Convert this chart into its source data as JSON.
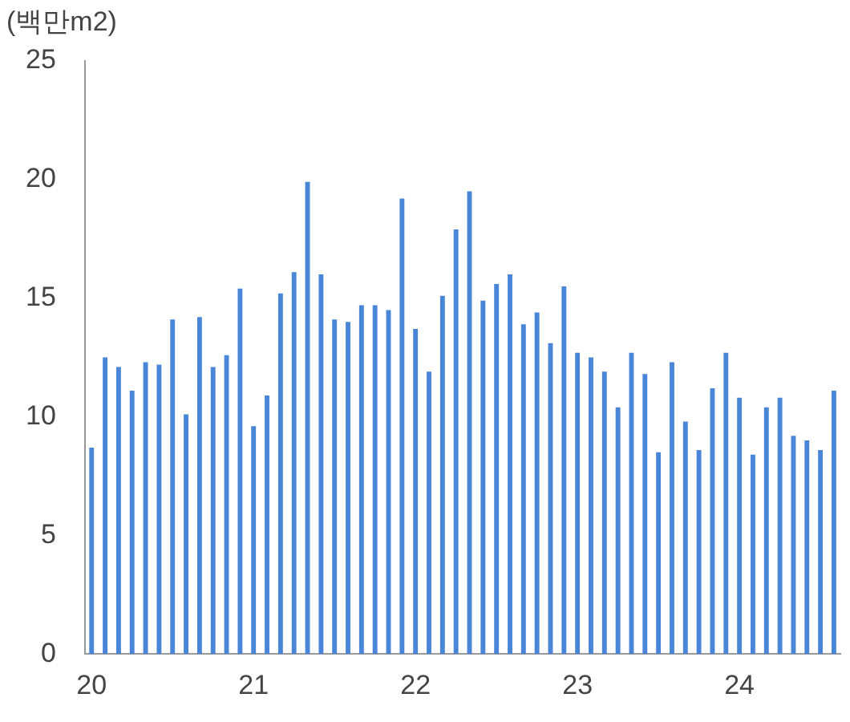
{
  "chart_data": {
    "type": "bar",
    "ylabel": "(백만m2)",
    "categories": [
      "20",
      null,
      null,
      null,
      null,
      null,
      null,
      null,
      null,
      null,
      null,
      null,
      "21",
      null,
      null,
      null,
      null,
      null,
      null,
      null,
      null,
      null,
      null,
      null,
      "22",
      null,
      null,
      null,
      null,
      null,
      null,
      null,
      null,
      null,
      null,
      null,
      "23",
      null,
      null,
      null,
      null,
      null,
      null,
      null,
      null,
      null,
      null,
      null,
      "24",
      null,
      null,
      null,
      null,
      null,
      null,
      null
    ],
    "values": [
      8.7,
      12.5,
      12.1,
      11.1,
      12.3,
      12.2,
      14.1,
      10.1,
      14.2,
      12.1,
      12.6,
      15.4,
      9.6,
      10.9,
      15.2,
      16.1,
      19.9,
      16.0,
      14.1,
      14.0,
      14.7,
      14.7,
      14.5,
      19.2,
      13.7,
      11.9,
      15.1,
      17.9,
      19.5,
      14.9,
      15.6,
      16.0,
      13.9,
      14.4,
      13.1,
      15.5,
      12.7,
      12.5,
      11.9,
      10.4,
      12.7,
      11.8,
      8.5,
      12.3,
      9.8,
      8.6,
      11.2,
      12.7,
      10.8,
      8.4,
      10.4,
      10.8,
      9.2,
      9.0,
      8.6,
      11.1
    ],
    "color": "#4a86d8",
    "ylim": [
      0,
      25
    ],
    "yticks": [
      0,
      5,
      10,
      15,
      20,
      25
    ],
    "grid": false,
    "legend": false
  }
}
